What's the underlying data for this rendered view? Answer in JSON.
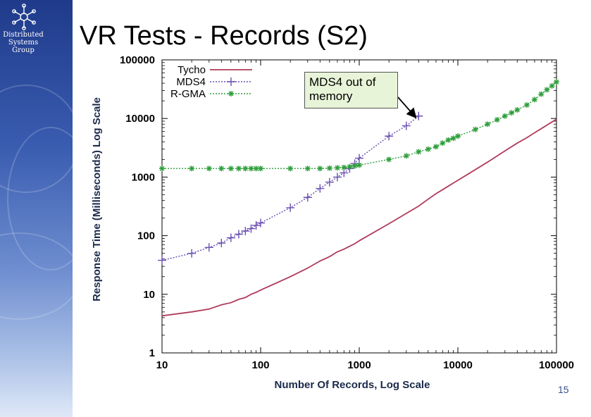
{
  "slide": {
    "title": "VR Tests - Records (S2)",
    "org_name": "Distributed\nSystems\nGroup",
    "page_number": "15",
    "sidebar_color": "#2b4a9c"
  },
  "callout": {
    "text": "MDS4 out of memory"
  },
  "chart_data": {
    "type": "line",
    "scale": "log-log",
    "xlabel": "Number Of Records, Log Scale",
    "ylabel": "Response Time (Milliseconds) Log Scale",
    "xlim": [
      10,
      100000
    ],
    "ylim": [
      1,
      100000
    ],
    "xticks": [
      10,
      100,
      1000,
      10000,
      100000
    ],
    "yticks": [
      1,
      10,
      100,
      1000,
      10000,
      100000
    ],
    "xtick_labels": [
      "10",
      "100",
      "1000",
      "10000",
      "100000"
    ],
    "ytick_labels": [
      "1",
      "10",
      "100",
      "1000",
      "10000",
      "100000"
    ],
    "legend_position": "top-left",
    "series": [
      {
        "name": "Tycho",
        "color": "#b03a5a",
        "marker": "none",
        "x": [
          10,
          20,
          30,
          40,
          50,
          60,
          70,
          80,
          90,
          100,
          200,
          300,
          400,
          500,
          600,
          700,
          800,
          900,
          1000,
          2000,
          3000,
          4000,
          5000,
          6000,
          7000,
          8000,
          9000,
          10000,
          20000,
          30000,
          40000,
          50000,
          60000,
          70000,
          80000,
          90000,
          100000
        ],
        "y": [
          4.3,
          5,
          5.6,
          6.6,
          7.2,
          8.2,
          8.8,
          10,
          10.8,
          11.8,
          20,
          28,
          37,
          44,
          53,
          59,
          66,
          73,
          82,
          160,
          240,
          320,
          420,
          520,
          610,
          700,
          790,
          880,
          1800,
          2800,
          3800,
          4700,
          5700,
          6700,
          7700,
          8700,
          9700
        ]
      },
      {
        "name": "MDS4",
        "color": "#6a4fb3",
        "marker": "plus",
        "x": [
          10,
          20,
          30,
          40,
          50,
          60,
          70,
          80,
          90,
          100,
          200,
          300,
          400,
          500,
          600,
          700,
          800,
          900,
          1000,
          2000,
          3000,
          4000
        ],
        "y": [
          38,
          50,
          63,
          75,
          92,
          106,
          120,
          132,
          150,
          165,
          300,
          450,
          640,
          820,
          1000,
          1180,
          1400,
          1700,
          2100,
          5000,
          7500,
          11000
        ]
      },
      {
        "name": "R-GMA",
        "color": "#2e9e3a",
        "marker": "star",
        "x": [
          10,
          20,
          30,
          40,
          50,
          60,
          70,
          80,
          90,
          100,
          200,
          300,
          400,
          500,
          600,
          700,
          800,
          900,
          1000,
          2000,
          3000,
          4000,
          5000,
          6000,
          7000,
          8000,
          9000,
          10000,
          15000,
          20000,
          25000,
          30000,
          35000,
          40000,
          50000,
          60000,
          70000,
          80000,
          90000,
          100000
        ],
        "y": [
          1400,
          1400,
          1400,
          1400,
          1400,
          1400,
          1400,
          1400,
          1400,
          1400,
          1400,
          1400,
          1400,
          1420,
          1440,
          1460,
          1500,
          1550,
          1600,
          2000,
          2300,
          2700,
          3000,
          3300,
          3800,
          4300,
          4600,
          5000,
          6500,
          8000,
          9500,
          11000,
          12500,
          14000,
          17000,
          21000,
          26000,
          31000,
          36000,
          42000
        ]
      }
    ]
  }
}
